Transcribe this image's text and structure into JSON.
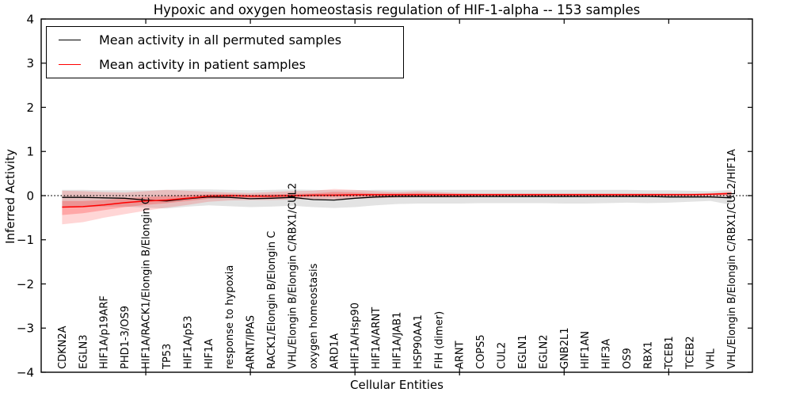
{
  "chart": {
    "title": "Hypoxic and oxygen homeostasis regulation of HIF-1-alpha -- 153 samples",
    "xlabel": "Cellular Entities",
    "ylabel": "Inferred Activity",
    "legend": [
      "Mean activity in all permuted samples",
      "Mean activity in patient samples"
    ]
  },
  "chart_data": {
    "type": "line",
    "title": "Hypoxic and oxygen homeostasis regulation of HIF-1-alpha -- 153 samples",
    "xlabel": "Cellular Entities",
    "ylabel": "Inferred Activity",
    "ylim": [
      -4,
      4
    ],
    "yticks": [
      4,
      3,
      2,
      1,
      0,
      -1,
      -2,
      -3,
      -4
    ],
    "x_tick_interval": 5,
    "grid": false,
    "legend_position": "upper left",
    "zero_reference_line": "dotted",
    "categories": [
      "CDKN2A",
      "EGLN3",
      "HIF1A/p19ARF",
      "PHD1-3/OS9",
      "HIF1A/RACK1/Elongin B/Elongin C",
      "TP53",
      "HIF1A/p53",
      "HIF1A",
      "response to hypoxia",
      "ARNT/IPAS",
      "RACK1/Elongin B/Elongin C",
      "VHL/Elongin B/Elongin C/RBX1/CUL2",
      "oxygen homeostasis",
      "ARD1A",
      "HIF1A/Hsp90",
      "HIF1A/ARNT",
      "HIF1A/JAB1",
      "HSP90AA1",
      "FIH (dimer)",
      "ARNT",
      "COPS5",
      "CUL2",
      "EGLN1",
      "EGLN2",
      "GNB2L1",
      "HIF1AN",
      "HIF3A",
      "OS9",
      "RBX1",
      "TCEB1",
      "TCEB2",
      "VHL",
      "VHL/Elongin B/Elongin C/RBX1/CUL2/HIF1A"
    ],
    "series": [
      {
        "name": "Mean activity in all permuted samples",
        "color": "#000000",
        "values": [
          -0.04,
          -0.04,
          -0.05,
          -0.06,
          -0.1,
          -0.12,
          -0.07,
          -0.03,
          -0.04,
          -0.07,
          -0.06,
          -0.04,
          -0.09,
          -0.1,
          -0.06,
          -0.03,
          -0.02,
          -0.02,
          -0.02,
          -0.02,
          -0.02,
          -0.02,
          -0.02,
          -0.02,
          -0.02,
          -0.02,
          -0.02,
          -0.02,
          -0.02,
          -0.03,
          -0.03,
          -0.03,
          -0.05
        ]
      },
      {
        "name": "Mean activity in patient samples",
        "color": "#ff0000",
        "values": [
          -0.26,
          -0.25,
          -0.21,
          -0.16,
          -0.12,
          -0.1,
          -0.06,
          -0.01,
          0.0,
          -0.01,
          -0.01,
          0.0,
          0.01,
          0.01,
          0.02,
          0.02,
          0.02,
          0.02,
          0.02,
          0.02,
          0.02,
          0.02,
          0.02,
          0.02,
          0.02,
          0.02,
          0.02,
          0.02,
          0.02,
          0.02,
          0.02,
          0.03,
          0.05
        ]
      }
    ],
    "bands": [
      {
        "name": "permuted-samples-range",
        "color": "#999999",
        "opacity": 0.28,
        "upper": [
          0.13,
          0.13,
          0.12,
          0.12,
          0.12,
          0.13,
          0.14,
          0.14,
          0.13,
          0.12,
          0.13,
          0.14,
          0.13,
          0.12,
          0.12,
          0.13,
          0.13,
          0.13,
          0.13,
          0.13,
          0.13,
          0.13,
          0.13,
          0.13,
          0.13,
          0.13,
          0.13,
          0.13,
          0.12,
          0.12,
          0.11,
          0.1,
          0.13
        ],
        "lower": [
          -0.27,
          -0.26,
          -0.25,
          -0.25,
          -0.27,
          -0.29,
          -0.25,
          -0.22,
          -0.24,
          -0.26,
          -0.25,
          -0.23,
          -0.26,
          -0.28,
          -0.26,
          -0.22,
          -0.19,
          -0.18,
          -0.18,
          -0.18,
          -0.17,
          -0.17,
          -0.17,
          -0.17,
          -0.18,
          -0.18,
          -0.17,
          -0.16,
          -0.17,
          -0.16,
          -0.14,
          -0.12,
          -0.21
        ]
      },
      {
        "name": "patient-samples-range-outer",
        "color": "#ff0000",
        "opacity": 0.16,
        "upper": [
          0.11,
          0.1,
          0.08,
          0.07,
          0.1,
          0.13,
          0.11,
          0.09,
          0.07,
          0.06,
          0.08,
          0.1,
          0.11,
          0.15,
          0.13,
          0.1,
          0.08,
          0.1,
          0.08,
          0.06,
          0.05,
          0.05,
          0.05,
          0.05,
          0.05,
          0.05,
          0.05,
          0.05,
          0.05,
          0.05,
          0.05,
          0.06,
          0.09
        ],
        "lower": [
          -0.65,
          -0.6,
          -0.5,
          -0.42,
          -0.34,
          -0.27,
          -0.21,
          -0.14,
          -0.11,
          -0.1,
          -0.1,
          -0.09,
          -0.08,
          -0.08,
          -0.07,
          -0.06,
          -0.05,
          -0.04,
          -0.04,
          -0.04,
          -0.03,
          -0.03,
          -0.03,
          -0.03,
          -0.03,
          -0.03,
          -0.03,
          -0.03,
          -0.03,
          -0.03,
          -0.03,
          -0.02,
          -0.01
        ]
      },
      {
        "name": "patient-samples-range-inner",
        "color": "#ff0000",
        "opacity": 0.22,
        "upper": [
          -0.12,
          -0.12,
          -0.1,
          -0.06,
          -0.03,
          -0.01,
          0.01,
          0.03,
          0.03,
          0.02,
          0.03,
          0.04,
          0.05,
          0.08,
          0.07,
          0.05,
          0.05,
          0.06,
          0.05,
          0.04,
          0.04,
          0.04,
          0.04,
          0.04,
          0.04,
          0.04,
          0.04,
          0.04,
          0.04,
          0.04,
          0.04,
          0.04,
          0.07
        ],
        "lower": [
          -0.44,
          -0.4,
          -0.33,
          -0.26,
          -0.21,
          -0.17,
          -0.12,
          -0.07,
          -0.05,
          -0.05,
          -0.05,
          -0.04,
          -0.03,
          -0.03,
          -0.02,
          -0.02,
          -0.01,
          -0.01,
          -0.01,
          -0.01,
          0.0,
          0.0,
          0.0,
          0.0,
          0.0,
          0.0,
          0.0,
          0.0,
          0.0,
          0.0,
          0.0,
          0.01,
          0.02
        ]
      }
    ],
    "colors": {
      "permuted_line": "#000000",
      "patient_line": "#ff0000",
      "axis": "#000000",
      "background": "#ffffff"
    }
  }
}
